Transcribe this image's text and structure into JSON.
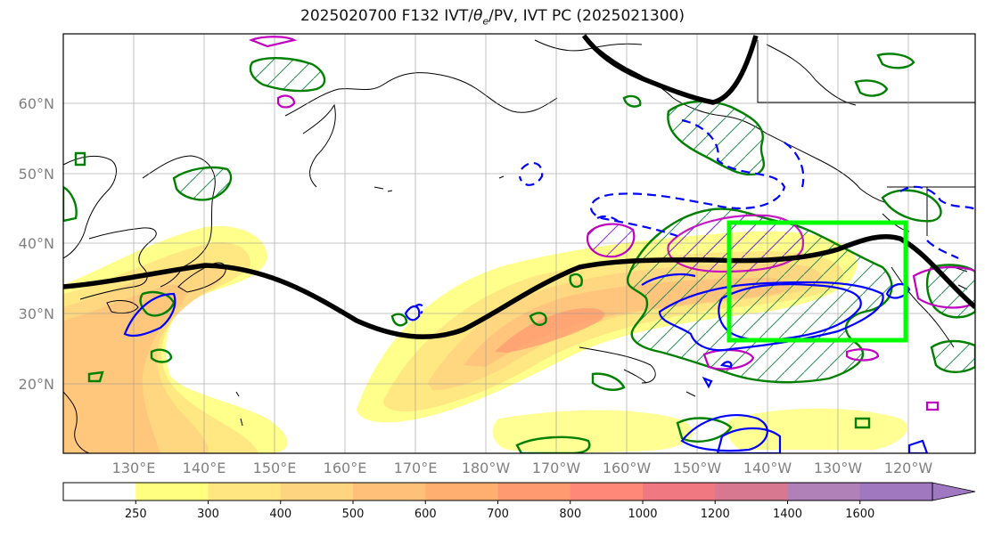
{
  "title": {
    "prefix": "2025020700 F132 IVT/",
    "theta": "θ",
    "sub": "e",
    "suffix": "/PV, IVT PC (2025021300)"
  },
  "lat_labels": [
    "60°N",
    "50°N",
    "40°N",
    "30°N",
    "20°N"
  ],
  "lon_labels": [
    "130°E",
    "140°E",
    "150°E",
    "160°E",
    "170°E",
    "180°W",
    "170°W",
    "160°W",
    "150°W",
    "140°W",
    "130°W",
    "120°W"
  ],
  "colorbar": {
    "levels": [
      "250",
      "300",
      "400",
      "500",
      "600",
      "700",
      "800",
      "1000",
      "1200",
      "1400",
      "1600"
    ],
    "colors": [
      "#ffff80",
      "#ffe680",
      "#ffd480",
      "#ffc07a",
      "#ffb070",
      "#ff9a70",
      "#ff8878",
      "#f07880",
      "#d87890",
      "#b080b8",
      "#a078c0"
    ]
  },
  "overlay_colors": {
    "ivt_shading_low": "#ffff80",
    "ivt_shading_mid": "#ffc07a",
    "ivt_shading_high": "#ff9a70",
    "theta_e_contour": "#008000",
    "pv_contour": "#0000ff",
    "pv_neg_contour": "#c000c0",
    "ivt_pc_line": "#000000",
    "target_box": "#00ff00"
  }
}
